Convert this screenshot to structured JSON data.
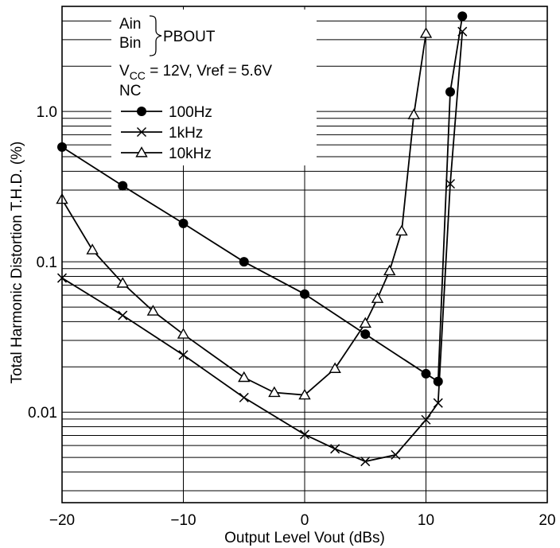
{
  "chart_data": {
    "type": "line",
    "title": "",
    "xlabel": "Output Level  Vout  (dBs)",
    "ylabel": "Total Harmonic Distortion  T.H.D.  (%)",
    "x_scale": "linear",
    "y_scale": "log",
    "xlim": [
      -20,
      20
    ],
    "ylim": [
      0.0025,
      5
    ],
    "x_ticks": [
      -20,
      -10,
      0,
      10,
      20
    ],
    "x_tick_labels": [
      "−20",
      "−10",
      "0",
      "10",
      "20"
    ],
    "y_ticks": [
      0.01,
      0.1,
      1.0
    ],
    "y_tick_labels": [
      "0.01",
      "0.1",
      "1.0"
    ],
    "grid": true,
    "legend_position": "top-left",
    "conditions": {
      "line1_signals": [
        "Ain",
        "Bin"
      ],
      "line1_output": "PBOUT",
      "line2_vcc_prefix": "V",
      "line2_vcc_sub": "CC",
      "line2_rest": " = 12V, Vref = 5.6V",
      "line3": "NC"
    },
    "series": [
      {
        "name": "100Hz",
        "marker": "filled-circle",
        "x": [
          -20,
          -15,
          -10,
          -5,
          0,
          5,
          10,
          11,
          12,
          13
        ],
        "y": [
          0.58,
          0.32,
          0.18,
          0.1,
          0.061,
          0.033,
          0.018,
          0.016,
          1.35,
          4.3
        ]
      },
      {
        "name": "1kHz",
        "marker": "cross",
        "x": [
          -20,
          -15,
          -10,
          -5,
          0,
          2.5,
          5,
          7.5,
          10,
          11,
          12,
          13
        ],
        "y": [
          0.078,
          0.044,
          0.024,
          0.0125,
          0.0071,
          0.0057,
          0.0047,
          0.0052,
          0.0089,
          0.0115,
          0.33,
          3.4
        ]
      },
      {
        "name": "10kHz",
        "marker": "open-triangle",
        "x": [
          -20,
          -17.5,
          -15,
          -12.5,
          -10,
          -5,
          -2.5,
          0,
          2.5,
          5,
          6,
          7,
          8,
          9,
          10
        ],
        "y": [
          0.26,
          0.12,
          0.072,
          0.047,
          0.033,
          0.017,
          0.0135,
          0.013,
          0.0195,
          0.039,
          0.057,
          0.087,
          0.16,
          0.95,
          3.3
        ]
      }
    ]
  }
}
